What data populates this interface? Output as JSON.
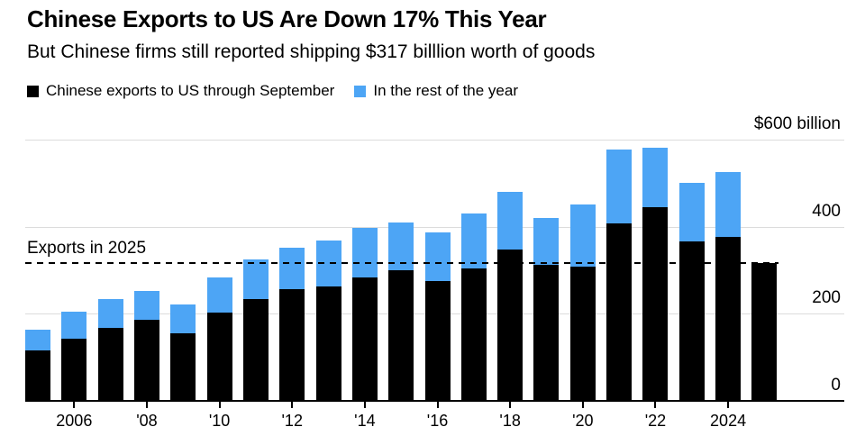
{
  "header": {
    "title": "Chinese Exports to US Are Down 17% This Year",
    "subtitle": "But Chinese firms still reported shipping $317 billlion worth of goods"
  },
  "legend": {
    "items": [
      {
        "label": "Chinese exports to US through September",
        "color": "#000000"
      },
      {
        "label": "In the rest of the year",
        "color": "#4da5f5"
      }
    ]
  },
  "chart_data": {
    "type": "bar",
    "stacked": true,
    "unit": "billion USD",
    "categories": [
      2005,
      2006,
      2007,
      2008,
      2009,
      2010,
      2011,
      2012,
      2013,
      2014,
      2015,
      2016,
      2017,
      2018,
      2019,
      2020,
      2021,
      2022,
      2023,
      2024,
      2025
    ],
    "series": [
      {
        "name": "Chinese exports to US through September",
        "color": "#000000",
        "values": [
          116,
          143,
          168,
          187,
          155,
          203,
          233,
          256,
          263,
          283,
          301,
          276,
          305,
          347,
          312,
          308,
          408,
          445,
          367,
          377,
          317
        ]
      },
      {
        "name": "In the rest of the year",
        "color": "#4da5f5",
        "values": [
          47,
          61,
          65,
          66,
          66,
          80,
          92,
          96,
          106,
          114,
          109,
          110,
          125,
          132,
          107,
          144,
          169,
          137,
          134,
          148,
          0
        ]
      }
    ],
    "ylim": [
      0,
      600
    ],
    "yticks": [
      0,
      200,
      400,
      600
    ],
    "ytick_labels": [
      "0",
      "200",
      "400",
      "$600 billion"
    ],
    "xticks": [
      {
        "year": 2006,
        "label": "2006"
      },
      {
        "year": 2008,
        "label": "'08"
      },
      {
        "year": 2010,
        "label": "'10"
      },
      {
        "year": 2012,
        "label": "'12"
      },
      {
        "year": 2014,
        "label": "'14"
      },
      {
        "year": 2016,
        "label": "'16"
      },
      {
        "year": 2018,
        "label": "'18"
      },
      {
        "year": 2020,
        "label": "'20"
      },
      {
        "year": 2022,
        "label": "'22"
      },
      {
        "year": 2024,
        "label": "2024"
      }
    ],
    "annotation": {
      "label": "Exports in 2025",
      "value": 317
    },
    "grid": "horizontal",
    "legend_position": "top"
  },
  "colors": {
    "background": "#ffffff",
    "grid": "#dcdcdc",
    "axis": "#000000",
    "text": "#000000",
    "bar_black": "#000000",
    "bar_blue": "#4da5f5"
  }
}
